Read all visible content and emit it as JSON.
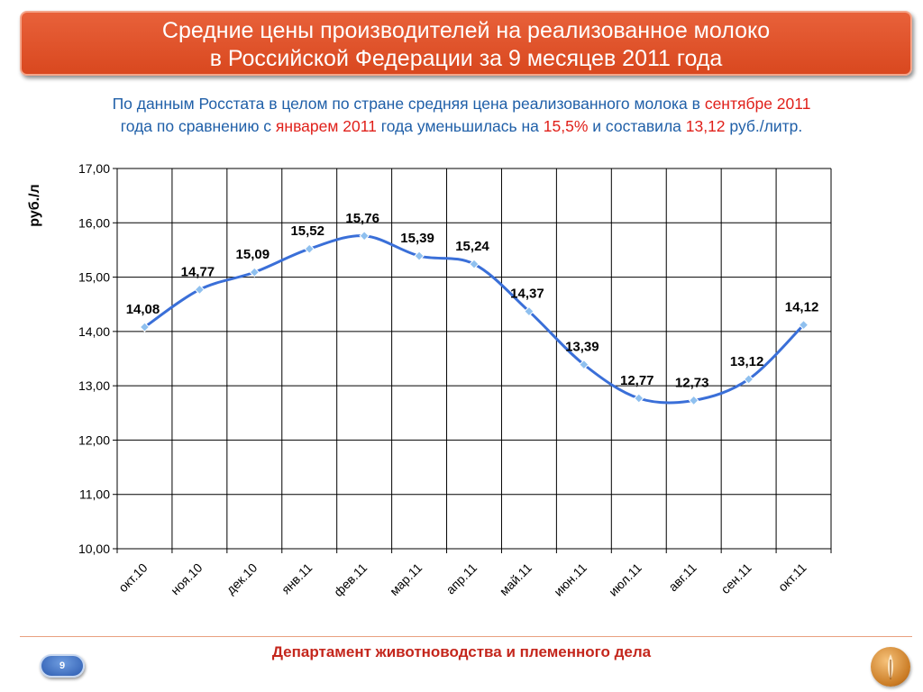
{
  "title": {
    "line1": "Средние цены производителей на реализованное молоко",
    "line2": "в Российской Федерации за 9 месяцев 2011 года"
  },
  "summary": {
    "p1": "По данным Росстата в целом по стране средняя цена реализованного молока в ",
    "h1": "сентябре 2011",
    "p2": "года по сравнению с ",
    "h2": "январем 2011",
    "p3": " года уменьшилась на ",
    "h3": "15,5%",
    "p4": " и составила ",
    "h4": "13,12",
    "p5": " руб./литр."
  },
  "footer": {
    "department": "Департамент животноводства и племенного дела",
    "page_number": "9"
  },
  "logo": {
    "icon": "wheat-emblem-icon"
  },
  "colors": {
    "title_bg": "#df5229",
    "summary_text": "#1f5fa8",
    "highlight": "#e0201a",
    "line": "#3a6fd8",
    "marker": "#8fc0ef",
    "footer_text": "#c4261c"
  },
  "chart_data": {
    "type": "line",
    "ylabel": "руб./л",
    "xlabel": "",
    "ylim": [
      10,
      17
    ],
    "y_ticks": [
      "10,00",
      "11,00",
      "12,00",
      "13,00",
      "14,00",
      "15,00",
      "16,00",
      "17,00"
    ],
    "grid": true,
    "smooth": true,
    "categories": [
      "окт.10",
      "ноя.10",
      "дек.10",
      "янв.11",
      "фев.11",
      "мар.11",
      "апр.11",
      "май.11",
      "июн.11",
      "июл.11",
      "авг.11",
      "сен.11",
      "окт.11"
    ],
    "values": [
      14.08,
      14.77,
      15.09,
      15.52,
      15.76,
      15.39,
      15.24,
      14.37,
      13.39,
      12.77,
      12.73,
      13.12,
      14.12
    ],
    "labels": [
      "14,08",
      "14,77",
      "15,09",
      "15,52",
      "15,76",
      "15,39",
      "15,24",
      "14,37",
      "13,39",
      "12,77",
      "12,73",
      "13,12",
      "14,12"
    ]
  }
}
